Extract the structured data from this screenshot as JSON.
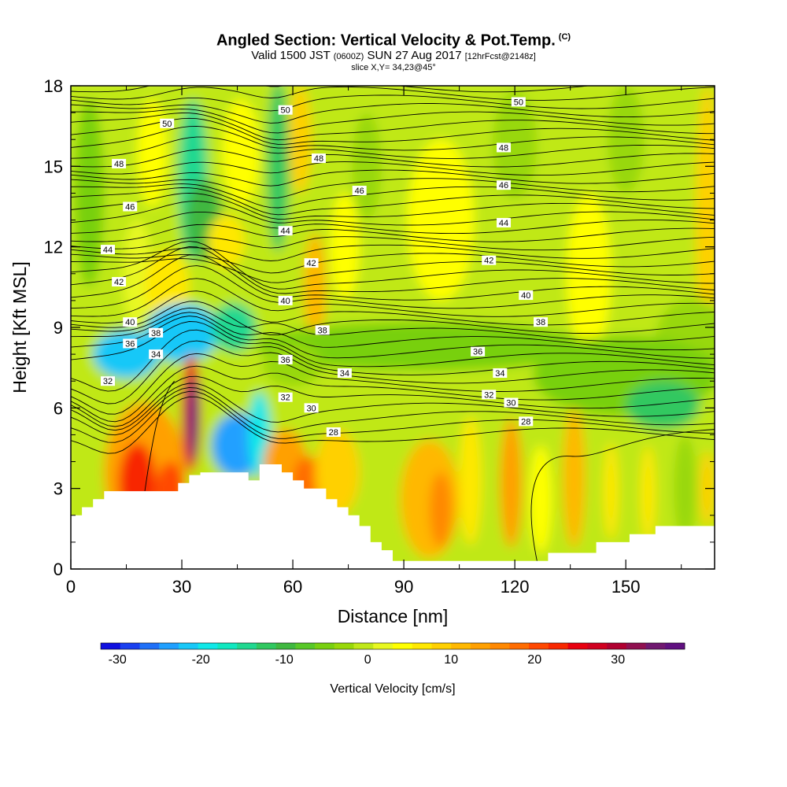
{
  "title": {
    "main": "Angled Section: Vertical Velocity & Pot.Temp.",
    "copyright": "(C)",
    "valid_prefix": "Valid 1500 JST",
    "valid_utc": "(0600Z)",
    "valid_date": "SUN 27 Aug 2017",
    "forecast": "[12hrFcst@2148z]",
    "slice": "slice X,Y= 34,23@45°"
  },
  "chart_data": {
    "type": "heatmap",
    "description_fields": "vertical velocity shaded, potential temperature contoured",
    "xlabel": "Distance [nm]",
    "ylabel": "Height [Kft MSL]",
    "xlim": [
      0,
      174
    ],
    "ylim": [
      0,
      18
    ],
    "x_ticks": [
      0,
      30,
      60,
      90,
      120,
      150
    ],
    "y_ticks": [
      0,
      3,
      6,
      9,
      12,
      15,
      18
    ],
    "colorbar": {
      "title": "Vertical Velocity [cm/s]",
      "ticks": [
        -30,
        -20,
        -10,
        0,
        10,
        20,
        30
      ],
      "range": [
        -32,
        38
      ],
      "colors": [
        "#1010e0",
        "#1a40f0",
        "#1f70f8",
        "#20a0ff",
        "#18c8f8",
        "#10e8e8",
        "#10e8c0",
        "#20d890",
        "#30c860",
        "#40b840",
        "#58c828",
        "#78d010",
        "#98d808",
        "#c0e818",
        "#e8f820",
        "#ffff00",
        "#ffe800",
        "#ffd000",
        "#ffb800",
        "#ffa000",
        "#ff8800",
        "#ff6c00",
        "#ff4800",
        "#f82800",
        "#e80010",
        "#d00020",
        "#b00030",
        "#901050",
        "#701870",
        "#601080"
      ]
    },
    "isentrope_labels": [
      {
        "x": 26,
        "y": 16.6,
        "value": "50"
      },
      {
        "x": 58,
        "y": 17.1,
        "value": "50"
      },
      {
        "x": 121,
        "y": 17.4,
        "value": "50"
      },
      {
        "x": 13,
        "y": 15.1,
        "value": "48"
      },
      {
        "x": 67,
        "y": 15.3,
        "value": "48"
      },
      {
        "x": 117,
        "y": 15.7,
        "value": "48"
      },
      {
        "x": 78,
        "y": 14.1,
        "value": "46"
      },
      {
        "x": 117,
        "y": 14.3,
        "value": "46"
      },
      {
        "x": 16,
        "y": 13.5,
        "value": "46"
      },
      {
        "x": 58,
        "y": 12.6,
        "value": "44"
      },
      {
        "x": 117,
        "y": 12.9,
        "value": "44"
      },
      {
        "x": 10,
        "y": 11.9,
        "value": "44"
      },
      {
        "x": 65,
        "y": 11.4,
        "value": "42"
      },
      {
        "x": 113,
        "y": 11.5,
        "value": "42"
      },
      {
        "x": 13,
        "y": 10.7,
        "value": "42"
      },
      {
        "x": 58,
        "y": 10.0,
        "value": "40"
      },
      {
        "x": 123,
        "y": 10.2,
        "value": "40"
      },
      {
        "x": 16,
        "y": 9.2,
        "value": "40"
      },
      {
        "x": 68,
        "y": 8.9,
        "value": "38"
      },
      {
        "x": 127,
        "y": 9.2,
        "value": "38"
      },
      {
        "x": 23,
        "y": 8.8,
        "value": "38"
      },
      {
        "x": 16,
        "y": 8.4,
        "value": "36"
      },
      {
        "x": 58,
        "y": 7.8,
        "value": "36"
      },
      {
        "x": 110,
        "y": 8.1,
        "value": "36"
      },
      {
        "x": 23,
        "y": 8.0,
        "value": "34"
      },
      {
        "x": 74,
        "y": 7.3,
        "value": "34"
      },
      {
        "x": 116,
        "y": 7.3,
        "value": "34"
      },
      {
        "x": 10,
        "y": 7.0,
        "value": "32"
      },
      {
        "x": 58,
        "y": 6.4,
        "value": "32"
      },
      {
        "x": 113,
        "y": 6.5,
        "value": "32"
      },
      {
        "x": 65,
        "y": 6.0,
        "value": "30"
      },
      {
        "x": 119,
        "y": 6.2,
        "value": "30"
      },
      {
        "x": 71,
        "y": 5.1,
        "value": "28"
      },
      {
        "x": 123,
        "y": 5.5,
        "value": "28"
      }
    ],
    "terrain_profile": [
      [
        0,
        2.0
      ],
      [
        3,
        2.0
      ],
      [
        3,
        2.3
      ],
      [
        6,
        2.3
      ],
      [
        6,
        2.6
      ],
      [
        9,
        2.6
      ],
      [
        9,
        2.9
      ],
      [
        29,
        2.9
      ],
      [
        29,
        3.2
      ],
      [
        32,
        3.2
      ],
      [
        32,
        3.5
      ],
      [
        35,
        3.5
      ],
      [
        35,
        3.6
      ],
      [
        48,
        3.6
      ],
      [
        48,
        3.3
      ],
      [
        51,
        3.3
      ],
      [
        51,
        3.9
      ],
      [
        57,
        3.9
      ],
      [
        57,
        3.6
      ],
      [
        60,
        3.6
      ],
      [
        60,
        3.3
      ],
      [
        63,
        3.3
      ],
      [
        63,
        3.0
      ],
      [
        69,
        3.0
      ],
      [
        69,
        2.6
      ],
      [
        72,
        2.6
      ],
      [
        72,
        2.3
      ],
      [
        75,
        2.3
      ],
      [
        75,
        2.0
      ],
      [
        78,
        2.0
      ],
      [
        78,
        1.6
      ],
      [
        81,
        1.6
      ],
      [
        81,
        1.0
      ],
      [
        84,
        1.0
      ],
      [
        84,
        0.7
      ],
      [
        87,
        0.7
      ],
      [
        87,
        0.3
      ],
      [
        129,
        0.3
      ],
      [
        129,
        0.6
      ],
      [
        142,
        0.6
      ],
      [
        142,
        1.0
      ],
      [
        151,
        1.0
      ],
      [
        151,
        1.3
      ],
      [
        158,
        1.3
      ],
      [
        158,
        1.6
      ],
      [
        165,
        1.6
      ],
      [
        165,
        1.6
      ],
      [
        174,
        1.6
      ]
    ]
  }
}
